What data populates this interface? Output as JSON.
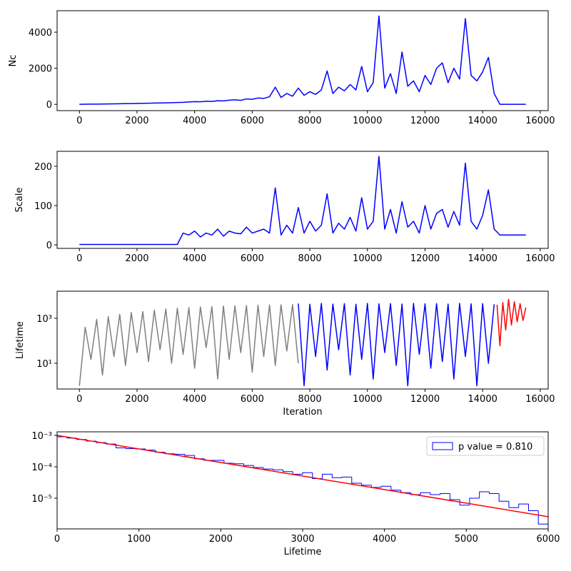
{
  "chart_data": [
    {
      "type": "line",
      "ylabel": "Nc",
      "xlim": [
        -775,
        16275
      ],
      "xticks": [
        0,
        2000,
        4000,
        6000,
        8000,
        10000,
        12000,
        14000,
        16000
      ],
      "ylim": [
        -350,
        5190
      ],
      "yticks": [
        0,
        2000,
        4000
      ],
      "series": [
        {
          "color": "blue",
          "x": [
            0,
            200,
            400,
            600,
            800,
            1000,
            1200,
            1400,
            1600,
            1800,
            2000,
            2200,
            2400,
            2600,
            2800,
            3000,
            3200,
            3400,
            3600,
            3800,
            4000,
            4200,
            4400,
            4600,
            4800,
            5000,
            5200,
            5400,
            5600,
            5800,
            6000,
            6200,
            6400,
            6600,
            6800,
            7000,
            7200,
            7400,
            7600,
            7800,
            8000,
            8200,
            8400,
            8600,
            8800,
            9000,
            9200,
            9400,
            9600,
            9800,
            10000,
            10200,
            10400,
            10600,
            10800,
            11000,
            11200,
            11400,
            11600,
            11800,
            12000,
            12200,
            12400,
            12600,
            12800,
            13000,
            13200,
            13400,
            13600,
            13800,
            14000,
            14200,
            14400,
            14600,
            14800,
            15000,
            15200,
            15400,
            15500
          ],
          "values": [
            0,
            5,
            10,
            10,
            15,
            20,
            25,
            30,
            40,
            40,
            50,
            55,
            60,
            70,
            75,
            80,
            90,
            100,
            110,
            130,
            150,
            140,
            170,
            160,
            200,
            190,
            230,
            250,
            220,
            300,
            280,
            350,
            330,
            420,
            950,
            380,
            600,
            450,
            900,
            500,
            700,
            550,
            800,
            1850,
            600,
            950,
            750,
            1100,
            800,
            2100,
            700,
            1200,
            4900,
            900,
            1700,
            600,
            2900,
            1000,
            1300,
            700,
            1600,
            1100,
            2000,
            2300,
            1200,
            2000,
            1400,
            4750,
            1600,
            1300,
            1800,
            2600,
            600,
            0,
            0,
            0,
            0,
            0,
            0
          ]
        }
      ]
    },
    {
      "type": "line",
      "ylabel": "Scale",
      "xlim": [
        -775,
        16275
      ],
      "xticks": [
        0,
        2000,
        4000,
        6000,
        8000,
        10000,
        12000,
        14000,
        16000
      ],
      "ylim": [
        -9,
        238
      ],
      "yticks": [
        0,
        100,
        200
      ],
      "series": [
        {
          "color": "blue",
          "x": [
            0,
            200,
            400,
            600,
            800,
            1000,
            1200,
            1400,
            1600,
            1800,
            2000,
            2200,
            2400,
            2600,
            2800,
            3000,
            3200,
            3400,
            3600,
            3800,
            4000,
            4200,
            4400,
            4600,
            4800,
            5000,
            5200,
            5400,
            5600,
            5800,
            6000,
            6200,
            6400,
            6600,
            6800,
            7000,
            7200,
            7400,
            7600,
            7800,
            8000,
            8200,
            8400,
            8600,
            8800,
            9000,
            9200,
            9400,
            9600,
            9800,
            10000,
            10200,
            10400,
            10600,
            10800,
            11000,
            11200,
            11400,
            11600,
            11800,
            12000,
            12200,
            12400,
            12600,
            12800,
            13000,
            13200,
            13400,
            13600,
            13800,
            14000,
            14200,
            14400,
            14600,
            14800,
            15000,
            15200,
            15400,
            15500
          ],
          "values": [
            1,
            1,
            1,
            1,
            1,
            1,
            1,
            1,
            1,
            1,
            1,
            1,
            1,
            1,
            1,
            1,
            1,
            1,
            30,
            25,
            35,
            20,
            30,
            25,
            40,
            22,
            35,
            30,
            28,
            45,
            30,
            35,
            40,
            30,
            145,
            25,
            50,
            30,
            95,
            30,
            60,
            35,
            50,
            130,
            30,
            55,
            40,
            70,
            35,
            120,
            40,
            60,
            225,
            40,
            90,
            30,
            110,
            45,
            60,
            30,
            100,
            40,
            80,
            90,
            45,
            85,
            50,
            208,
            60,
            40,
            75,
            140,
            40,
            25,
            25,
            25,
            25,
            25,
            25
          ]
        }
      ]
    },
    {
      "type": "line",
      "ylabel": "Lifetime",
      "xlabel": "Iteration",
      "ylog": true,
      "xlim": [
        -775,
        16275
      ],
      "xticks": [
        0,
        2000,
        4000,
        6000,
        8000,
        10000,
        12000,
        14000,
        16000
      ],
      "ylim": [
        0.72,
        16000
      ],
      "yticks": [
        {
          "value": 10,
          "label": "10¹"
        },
        {
          "value": 1000,
          "label": "10³"
        }
      ],
      "series": [
        {
          "color": "gray",
          "x": [
            0,
            200,
            400,
            600,
            800,
            1000,
            1200,
            1400,
            1600,
            1800,
            2000,
            2200,
            2400,
            2600,
            2800,
            3000,
            3200,
            3400,
            3600,
            3800,
            4000,
            4200,
            4400,
            4600,
            4800,
            5000,
            5200,
            5400,
            5600,
            5800,
            6000,
            6200,
            6400,
            6600,
            6800,
            7000,
            7200,
            7400,
            7600
          ],
          "values": [
            1,
            400,
            15,
            900,
            3,
            1200,
            20,
            1500,
            8,
            1800,
            30,
            2000,
            12,
            2300,
            40,
            2600,
            10,
            2800,
            25,
            3000,
            6,
            3200,
            50,
            3300,
            2,
            3500,
            15,
            3600,
            30,
            3700,
            4,
            3800,
            20,
            3900,
            8,
            4000,
            35,
            4100,
            10
          ]
        },
        {
          "color": "blue",
          "x": [
            7600,
            7800,
            8000,
            8200,
            8400,
            8600,
            8800,
            9000,
            9200,
            9400,
            9600,
            9800,
            10000,
            10200,
            10400,
            10600,
            10800,
            11000,
            11200,
            11400,
            11600,
            11800,
            12000,
            12200,
            12400,
            12600,
            12800,
            13000,
            13200,
            13400,
            13600,
            13800,
            14000,
            14200,
            14400
          ],
          "values": [
            4500,
            1,
            4200,
            20,
            4600,
            5,
            4300,
            40,
            4500,
            3,
            4200,
            15,
            4600,
            2,
            4400,
            30,
            4500,
            8,
            4300,
            1,
            4600,
            25,
            4400,
            6,
            4500,
            12,
            4300,
            2,
            4600,
            20,
            4400,
            1,
            4500,
            10,
            4200
          ]
        },
        {
          "color": "red",
          "x": [
            14500,
            14600,
            14700,
            14800,
            14900,
            15000,
            15100,
            15200,
            15300,
            15400,
            15500
          ],
          "values": [
            4000,
            60,
            5000,
            300,
            7000,
            500,
            5500,
            700,
            4500,
            800,
            3000
          ]
        }
      ]
    },
    {
      "type": "histogram",
      "xlabel": "Lifetime",
      "ylog": true,
      "legend": "upper right",
      "xlim": [
        0,
        6000
      ],
      "xticks": [
        0,
        1000,
        2000,
        3000,
        4000,
        5000,
        6000
      ],
      "ylim": [
        1.05e-06,
        0.0013
      ],
      "yticks": [
        {
          "value": 1e-05,
          "label": "10⁻⁵"
        },
        {
          "value": 0.0001,
          "label": "10⁻⁴"
        },
        {
          "value": 0.001,
          "label": "10⁻³"
        }
      ],
      "bins": [
        0,
        120,
        240,
        360,
        480,
        600,
        720,
        840,
        960,
        1080,
        1200,
        1320,
        1440,
        1560,
        1680,
        1800,
        1920,
        2040,
        2160,
        2280,
        2400,
        2520,
        2640,
        2760,
        2880,
        3000,
        3120,
        3240,
        3360,
        3480,
        3600,
        3720,
        3840,
        3960,
        4080,
        4200,
        4320,
        4440,
        4560,
        4680,
        4800,
        4920,
        5040,
        5160,
        5280,
        5400,
        5520,
        5640,
        5760,
        5880,
        6000
      ],
      "series": [
        {
          "name": "p value = 0.810",
          "color": "blue",
          "values": [
            0.0009,
            0.00082,
            0.00074,
            0.00066,
            0.00059,
            0.00053,
            0.0004,
            0.00038,
            0.00037,
            0.00034,
            0.00029,
            0.00026,
            0.00025,
            0.00023,
            0.00018,
            0.00016,
            0.00016,
            0.00013,
            0.000125,
            0.00011,
            9.5e-05,
            8.5e-05,
            8e-05,
            7e-05,
            5.8e-05,
            6.5e-05,
            4.2e-05,
            5.8e-05,
            4.5e-05,
            4.7e-05,
            3e-05,
            2.6e-05,
            2.2e-05,
            2.4e-05,
            1.8e-05,
            1.5e-05,
            1.3e-05,
            1.5e-05,
            1.3e-05,
            1.4e-05,
            9e-06,
            6e-06,
            1e-05,
            1.6e-05,
            1.4e-05,
            8e-06,
            5e-06,
            6.5e-06,
            4e-06,
            1.5e-06
          ]
        }
      ],
      "fit": {
        "color": "red",
        "x": [
          0,
          6000
        ],
        "values": [
          0.001,
          2.57e-06
        ]
      }
    }
  ]
}
